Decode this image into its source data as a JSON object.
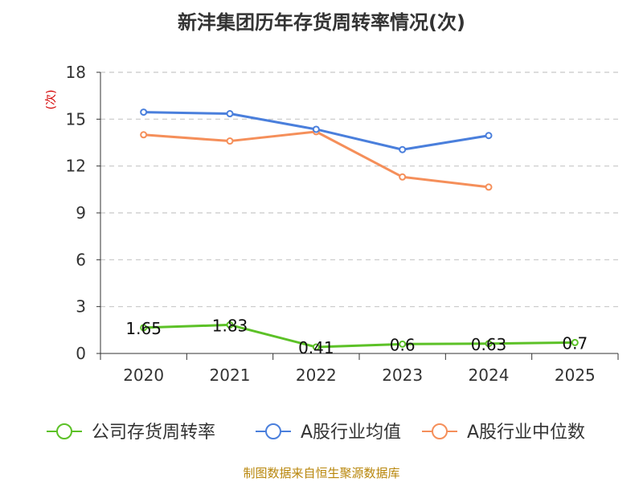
{
  "chart_data": {
    "type": "line",
    "title": "新沣集团历年存货周转率情况(次)",
    "ylabel": "(次)",
    "xlabel": "",
    "categories": [
      "2020",
      "2021",
      "2022",
      "2023",
      "2024",
      "2025"
    ],
    "ylim": [
      0,
      18
    ],
    "yticks": [
      0,
      3,
      6,
      9,
      12,
      15,
      18
    ],
    "grid": true,
    "legend_position": "bottom",
    "series": [
      {
        "name": "公司存货周转率",
        "color": "#5cc127",
        "values": [
          1.65,
          1.83,
          0.41,
          0.6,
          0.63,
          0.7
        ],
        "labels": [
          "1.65",
          "1.83",
          "0.41",
          "0.6",
          "0.63",
          "0.7"
        ]
      },
      {
        "name": "A股行业均值",
        "color": "#4a7fdc",
        "values": [
          15.45,
          15.35,
          14.35,
          13.05,
          13.95,
          null
        ]
      },
      {
        "name": "A股行业中位数",
        "color": "#f58f5a",
        "values": [
          14.0,
          13.6,
          14.2,
          11.3,
          10.65,
          null
        ]
      }
    ]
  },
  "source_text": "制图数据来自恒生聚源数据库"
}
